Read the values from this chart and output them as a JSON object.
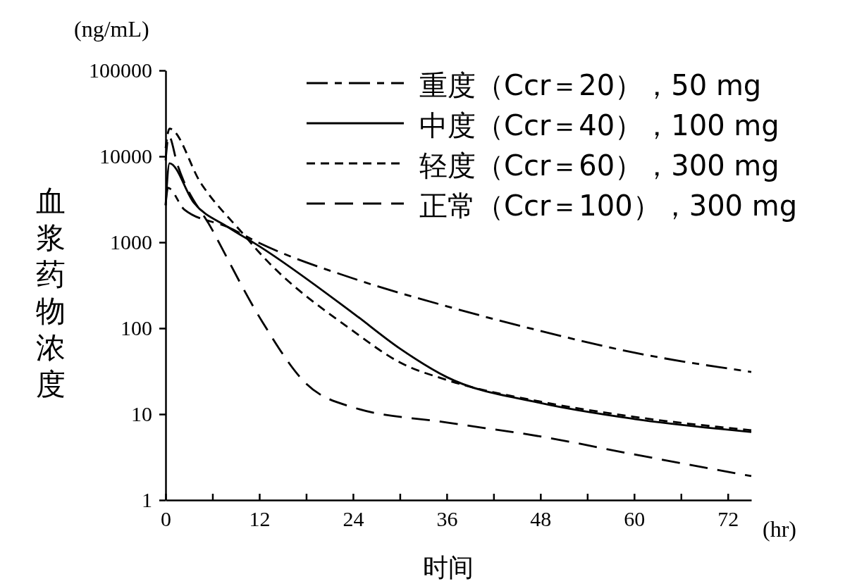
{
  "chart_data": {
    "type": "line",
    "xlabel": "时间",
    "ylabel": "血浆药物浓度",
    "annotations": [
      "(ng/mL)",
      "(hr)"
    ],
    "xlim": [
      0,
      75
    ],
    "xticks": [
      0,
      {
        "value": 6,
        "label": null
      },
      12,
      {
        "value": 18,
        "label": null
      },
      24,
      {
        "value": 30,
        "label": null
      },
      36,
      {
        "value": 42,
        "label": null
      },
      48,
      {
        "value": 54,
        "label": null
      },
      60,
      {
        "value": 66,
        "label": null
      },
      72
    ],
    "ylim": [
      1,
      100000
    ],
    "yticks": [
      1,
      10,
      100,
      1000,
      10000,
      100000
    ],
    "log": true,
    "grid": false,
    "legend": "top right",
    "marker": "none",
    "series": [
      {
        "name": "重度（Ccr＝20），50 mg",
        "color": "#000000",
        "line_style": "dashdot",
        "x": [
          0,
          0.3,
          2.4,
          8,
          12,
          24,
          36,
          48,
          60,
          75
        ],
        "values": [
          2700,
          4300,
          2400,
          1500,
          980,
          380,
          180,
          93,
          52,
          31
        ]
      },
      {
        "name": "中度（Ccr＝40），100 mg",
        "color": "#000000",
        "line_style": "solid",
        "x": [
          0,
          0.5,
          3.6,
          8,
          12,
          24,
          30,
          36,
          48,
          60,
          75
        ],
        "values": [
          2700,
          8300,
          2900,
          1500,
          900,
          150,
          58,
          27,
          13.5,
          8.8,
          6.2
        ]
      },
      {
        "name": "轻度（Ccr＝60），300 mg",
        "color": "#000000",
        "line_style": "dashed",
        "x": [
          0,
          0.5,
          4.5,
          10,
          12,
          24,
          30,
          36,
          48,
          60,
          75
        ],
        "values": [
          12500,
          21000,
          4900,
          1230,
          760,
          93,
          40,
          25,
          14,
          9.3,
          6.5
        ]
      },
      {
        "name": "正常（Ccr＝100），300 mg",
        "color": "#000000",
        "line_style": "longdashed",
        "x": [
          0,
          0.4,
          1.5,
          6,
          12.4,
          18,
          24,
          36,
          48,
          60,
          75
        ],
        "values": [
          9000,
          17300,
          8100,
          1380,
          118,
          22.6,
          12,
          8,
          5.5,
          3.4,
          1.9
        ]
      }
    ]
  }
}
